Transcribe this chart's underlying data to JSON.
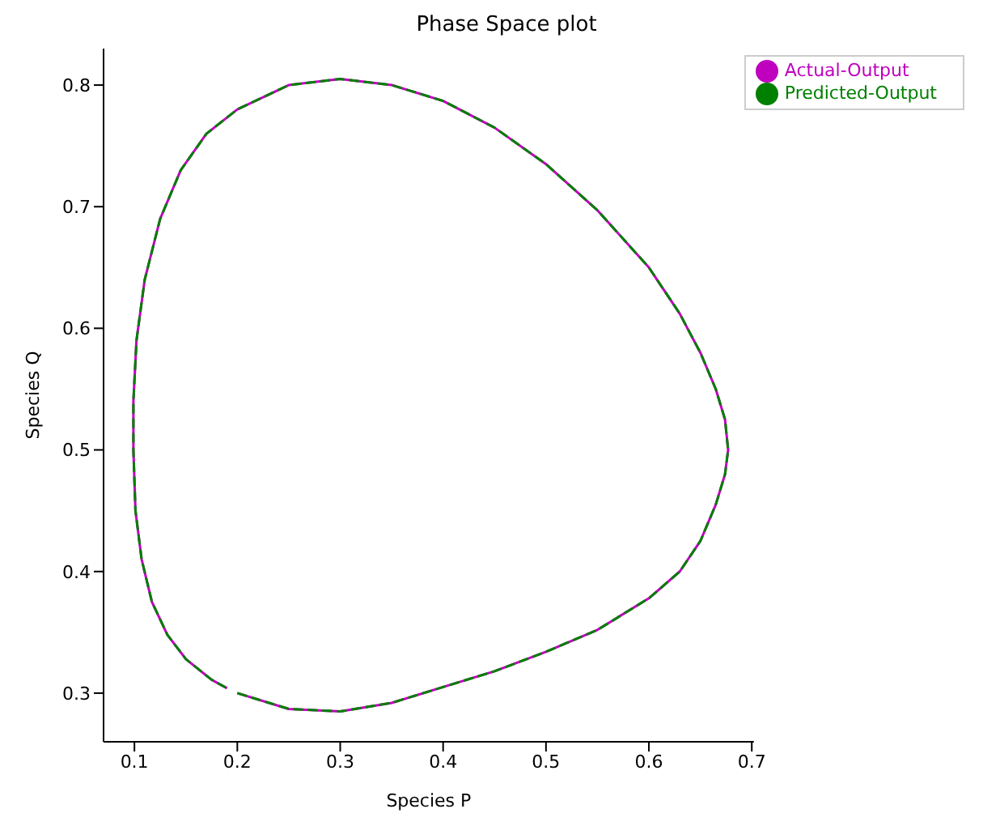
{
  "chart_data": {
    "type": "line",
    "title": "Phase Space plot",
    "xlabel": "Species P",
    "ylabel": "Species Q",
    "xlim": [
      0.07,
      0.702
    ],
    "xticks": [
      0.1,
      0.2,
      0.3,
      0.4,
      0.5,
      0.6,
      0.7
    ],
    "ylim": [
      0.26,
      0.83
    ],
    "yticks": [
      0.3,
      0.4,
      0.5,
      0.6,
      0.7,
      0.8
    ],
    "grid": false,
    "legend": "top right",
    "marker": "none",
    "series": [
      {
        "name": "Actual-Output",
        "color": "#bf00bf",
        "line_style": "solid",
        "x": [
          0.2,
          0.25,
          0.3,
          0.35,
          0.4,
          0.45,
          0.5,
          0.55,
          0.6,
          0.63,
          0.65,
          0.665,
          0.674,
          0.677,
          0.674,
          0.665,
          0.65,
          0.63,
          0.6,
          0.55,
          0.5,
          0.45,
          0.4,
          0.35,
          0.3,
          0.25,
          0.2,
          0.17,
          0.145,
          0.125,
          0.11,
          0.102,
          0.099,
          0.099,
          0.101,
          0.107,
          0.117,
          0.132,
          0.15,
          0.175,
          0.19
        ],
        "values": [
          0.3,
          0.287,
          0.285,
          0.292,
          0.305,
          0.318,
          0.334,
          0.352,
          0.378,
          0.4,
          0.425,
          0.455,
          0.48,
          0.5,
          0.525,
          0.55,
          0.58,
          0.612,
          0.65,
          0.697,
          0.735,
          0.765,
          0.787,
          0.8,
          0.805,
          0.8,
          0.78,
          0.76,
          0.73,
          0.69,
          0.64,
          0.59,
          0.54,
          0.5,
          0.45,
          0.41,
          0.375,
          0.348,
          0.328,
          0.311,
          0.304
        ]
      },
      {
        "name": "Predicted-Output",
        "color": "#008000",
        "line_style": "dashed",
        "x": [
          0.2,
          0.25,
          0.3,
          0.35,
          0.4,
          0.45,
          0.5,
          0.55,
          0.6,
          0.63,
          0.65,
          0.665,
          0.674,
          0.677,
          0.674,
          0.665,
          0.65,
          0.63,
          0.6,
          0.55,
          0.5,
          0.45,
          0.4,
          0.35,
          0.3,
          0.25,
          0.2,
          0.17,
          0.145,
          0.125,
          0.11,
          0.102,
          0.099,
          0.099,
          0.101,
          0.107,
          0.117,
          0.132,
          0.15,
          0.175,
          0.19
        ],
        "values": [
          0.3,
          0.287,
          0.285,
          0.292,
          0.305,
          0.318,
          0.334,
          0.352,
          0.378,
          0.4,
          0.425,
          0.455,
          0.48,
          0.5,
          0.525,
          0.55,
          0.58,
          0.612,
          0.65,
          0.697,
          0.735,
          0.765,
          0.787,
          0.8,
          0.805,
          0.8,
          0.78,
          0.76,
          0.73,
          0.69,
          0.64,
          0.59,
          0.54,
          0.5,
          0.45,
          0.41,
          0.375,
          0.348,
          0.328,
          0.311,
          0.304
        ]
      }
    ]
  }
}
